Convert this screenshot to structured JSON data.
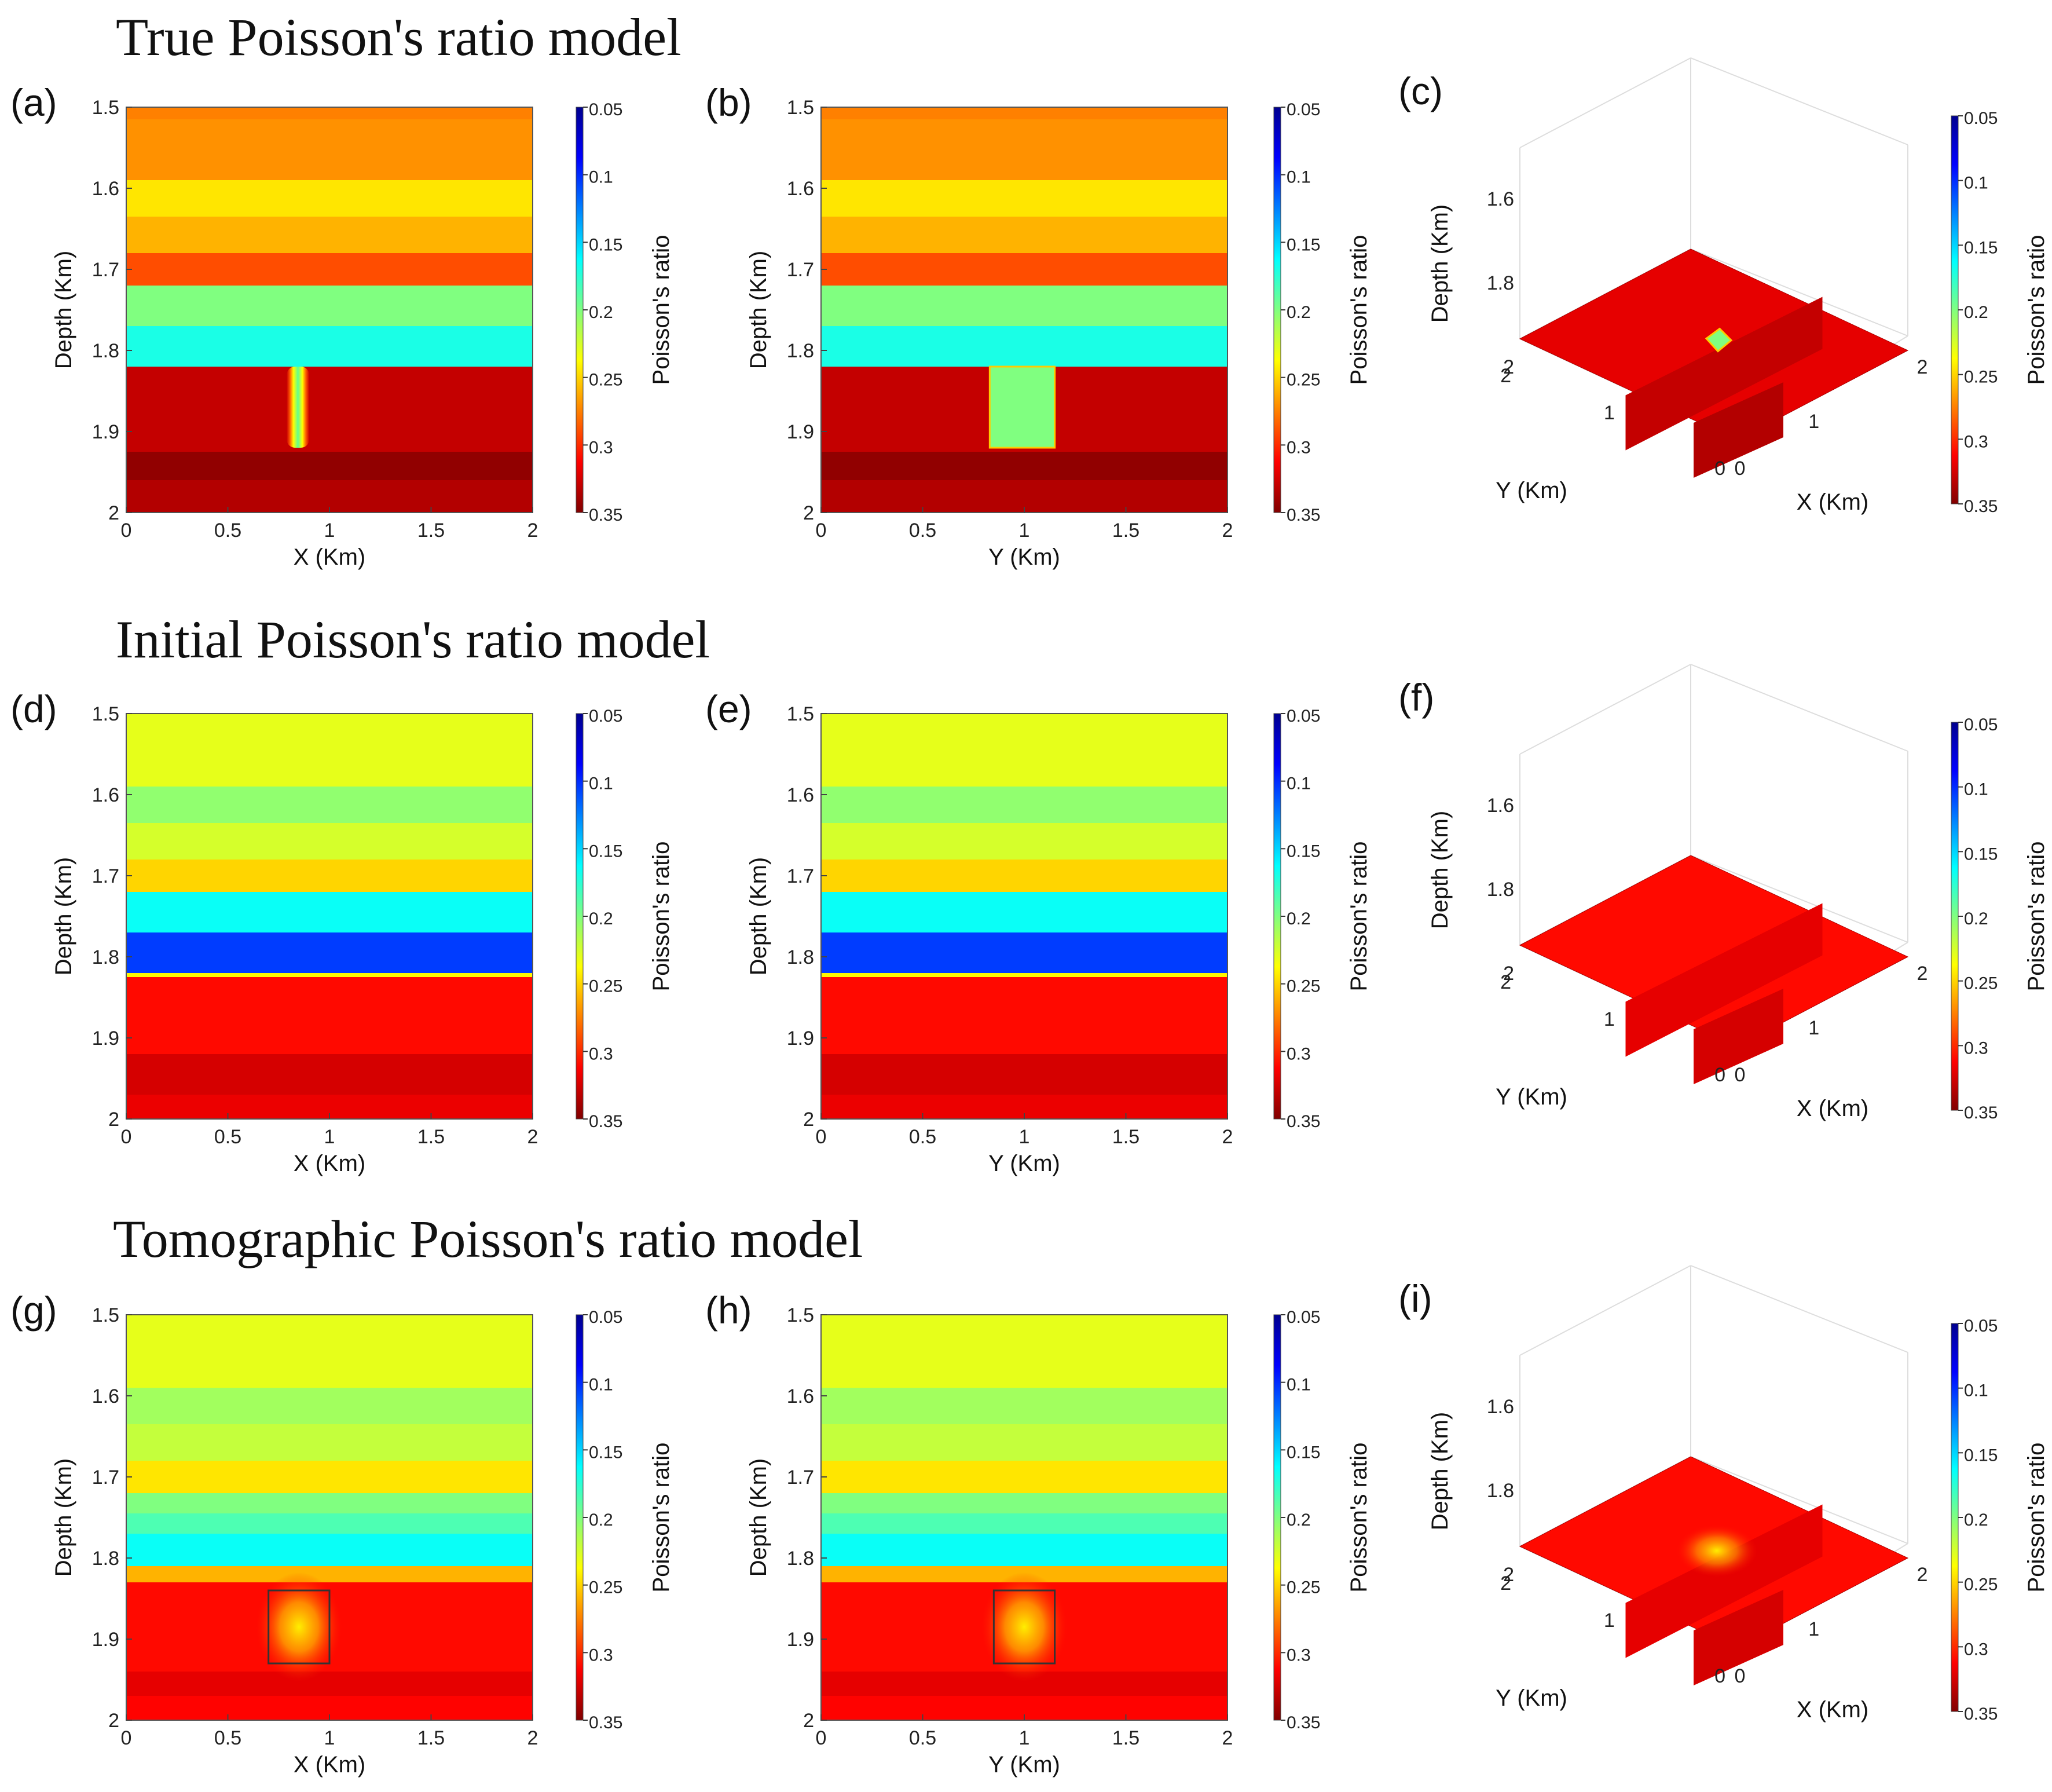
{
  "titles": [
    "True Poisson's ratio model",
    "Initial Poisson's ratio model",
    "Tomographic Poisson's ratio model"
  ],
  "colors": {
    "colormap": [
      "#00008f",
      "#0000ff",
      "#0080ff",
      "#00ffff",
      "#80ff80",
      "#ffff00",
      "#ff8000",
      "#ff0000",
      "#800000"
    ],
    "box_outline": "#333333",
    "grid_3d": "#dddddd"
  },
  "chart_data": [
    {
      "panel": "(a)",
      "type": "heatmap",
      "view": "xz-slice",
      "xlabel": "X (Km)",
      "ylabel": "Depth (Km)",
      "xlim": [
        0,
        2
      ],
      "ylim": [
        1.5,
        2
      ],
      "xticks": [
        "0",
        "0.5",
        "1",
        "1.5",
        "2"
      ],
      "yticks": [
        "1.5",
        "1.6",
        "1.7",
        "1.8",
        "1.9",
        "2"
      ],
      "layers": [
        {
          "top": 1.5,
          "bottom": 1.515,
          "value": 0.275
        },
        {
          "top": 1.515,
          "bottom": 1.59,
          "value": 0.27
        },
        {
          "top": 1.59,
          "bottom": 1.635,
          "value": 0.245
        },
        {
          "top": 1.635,
          "bottom": 1.68,
          "value": 0.26
        },
        {
          "top": 1.68,
          "bottom": 1.72,
          "value": 0.29
        },
        {
          "top": 1.72,
          "bottom": 1.77,
          "value": 0.2
        },
        {
          "top": 1.77,
          "bottom": 1.82,
          "value": 0.17
        },
        {
          "top": 1.82,
          "bottom": 1.925,
          "value": 0.33
        },
        {
          "top": 1.925,
          "bottom": 1.96,
          "value": 0.345
        },
        {
          "top": 1.96,
          "bottom": 2.0,
          "value": 0.335
        }
      ],
      "anomaly": {
        "min": 0.79,
        "max": 0.9,
        "top": 1.82,
        "bottom": 1.92,
        "value": 0.2,
        "style": "sharp"
      },
      "colorbar": {
        "label": "Poisson's ratio",
        "ticks": [
          "0.05",
          "0.1",
          "0.15",
          "0.2",
          "0.25",
          "0.3",
          "0.35"
        ],
        "range": [
          0.05,
          0.35
        ]
      }
    },
    {
      "panel": "(b)",
      "type": "heatmap",
      "view": "yz-slice",
      "xlabel": "Y (Km)",
      "ylabel": "Depth (Km)",
      "xlim": [
        0,
        2
      ],
      "ylim": [
        1.5,
        2
      ],
      "xticks": [
        "0",
        "0.5",
        "1",
        "1.5",
        "2"
      ],
      "yticks": [
        "1.5",
        "1.6",
        "1.7",
        "1.8",
        "1.9",
        "2"
      ],
      "layers": [
        {
          "top": 1.5,
          "bottom": 1.515,
          "value": 0.275
        },
        {
          "top": 1.515,
          "bottom": 1.59,
          "value": 0.27
        },
        {
          "top": 1.59,
          "bottom": 1.635,
          "value": 0.245
        },
        {
          "top": 1.635,
          "bottom": 1.68,
          "value": 0.26
        },
        {
          "top": 1.68,
          "bottom": 1.72,
          "value": 0.29
        },
        {
          "top": 1.72,
          "bottom": 1.77,
          "value": 0.2
        },
        {
          "top": 1.77,
          "bottom": 1.82,
          "value": 0.17
        },
        {
          "top": 1.82,
          "bottom": 1.925,
          "value": 0.33
        },
        {
          "top": 1.925,
          "bottom": 1.96,
          "value": 0.345
        },
        {
          "top": 1.96,
          "bottom": 2.0,
          "value": 0.335
        }
      ],
      "anomaly": {
        "min": 0.83,
        "max": 1.15,
        "top": 1.82,
        "bottom": 1.92,
        "value": 0.2,
        "style": "block"
      },
      "colorbar": {
        "label": "Poisson's ratio",
        "ticks": [
          "0.05",
          "0.1",
          "0.15",
          "0.2",
          "0.25",
          "0.3",
          "0.35"
        ],
        "range": [
          0.05,
          0.35
        ]
      }
    },
    {
      "panel": "(c)",
      "type": "surface3d",
      "xlabel": "X (Km)",
      "ylabel": "Y (Km)",
      "zlabel": "Depth (Km)",
      "xticks": [
        "0",
        "1",
        "2"
      ],
      "yticks": [
        "0",
        "1",
        "2"
      ],
      "zticks": [
        "1.6",
        "1.8",
        "2"
      ],
      "surface_value": 0.32,
      "anomaly": "small green patch at center (~0.2)",
      "colorbar": {
        "label": "Poisson's ratio",
        "ticks": [
          "0.05",
          "0.1",
          "0.15",
          "0.2",
          "0.25",
          "0.3",
          "0.35"
        ],
        "range": [
          0.05,
          0.35
        ]
      }
    },
    {
      "panel": "(d)",
      "type": "heatmap",
      "view": "xz-slice",
      "xlabel": "X (Km)",
      "ylabel": "Depth (Km)",
      "xlim": [
        0,
        2
      ],
      "ylim": [
        1.5,
        2
      ],
      "xticks": [
        "0",
        "0.5",
        "1",
        "1.5",
        "2"
      ],
      "yticks": [
        "1.5",
        "1.6",
        "1.7",
        "1.8",
        "1.9",
        "2"
      ],
      "layers": [
        {
          "top": 1.5,
          "bottom": 1.59,
          "value": 0.23
        },
        {
          "top": 1.59,
          "bottom": 1.635,
          "value": 0.205
        },
        {
          "top": 1.635,
          "bottom": 1.68,
          "value": 0.225
        },
        {
          "top": 1.68,
          "bottom": 1.72,
          "value": 0.25
        },
        {
          "top": 1.72,
          "bottom": 1.77,
          "value": 0.165
        },
        {
          "top": 1.77,
          "bottom": 1.82,
          "value": 0.105
        },
        {
          "top": 1.82,
          "bottom": 1.825,
          "value": 0.24
        },
        {
          "top": 1.825,
          "bottom": 1.92,
          "value": 0.31
        },
        {
          "top": 1.92,
          "bottom": 1.97,
          "value": 0.325
        },
        {
          "top": 1.97,
          "bottom": 2.0,
          "value": 0.318
        }
      ],
      "colorbar": {
        "label": "Poisson's ratio",
        "ticks": [
          "0.05",
          "0.1",
          "0.15",
          "0.2",
          "0.25",
          "0.3",
          "0.35"
        ],
        "range": [
          0.05,
          0.35
        ]
      }
    },
    {
      "panel": "(e)",
      "type": "heatmap",
      "view": "yz-slice",
      "xlabel": "Y (Km)",
      "ylabel": "Depth (Km)",
      "xlim": [
        0,
        2
      ],
      "ylim": [
        1.5,
        2
      ],
      "xticks": [
        "0",
        "0.5",
        "1",
        "1.5",
        "2"
      ],
      "yticks": [
        "1.5",
        "1.6",
        "1.7",
        "1.8",
        "1.9",
        "2"
      ],
      "layers": [
        {
          "top": 1.5,
          "bottom": 1.59,
          "value": 0.23
        },
        {
          "top": 1.59,
          "bottom": 1.635,
          "value": 0.205
        },
        {
          "top": 1.635,
          "bottom": 1.68,
          "value": 0.225
        },
        {
          "top": 1.68,
          "bottom": 1.72,
          "value": 0.25
        },
        {
          "top": 1.72,
          "bottom": 1.77,
          "value": 0.165
        },
        {
          "top": 1.77,
          "bottom": 1.82,
          "value": 0.105
        },
        {
          "top": 1.82,
          "bottom": 1.825,
          "value": 0.24
        },
        {
          "top": 1.825,
          "bottom": 1.92,
          "value": 0.31
        },
        {
          "top": 1.92,
          "bottom": 1.97,
          "value": 0.325
        },
        {
          "top": 1.97,
          "bottom": 2.0,
          "value": 0.318
        }
      ],
      "colorbar": {
        "label": "Poisson's ratio",
        "ticks": [
          "0.05",
          "0.1",
          "0.15",
          "0.2",
          "0.25",
          "0.3",
          "0.35"
        ],
        "range": [
          0.05,
          0.35
        ]
      }
    },
    {
      "panel": "(f)",
      "type": "surface3d",
      "xlabel": "X (Km)",
      "ylabel": "Y (Km)",
      "zlabel": "Depth (Km)",
      "xticks": [
        "0",
        "1",
        "2"
      ],
      "yticks": [
        "0",
        "1",
        "2"
      ],
      "zticks": [
        "1.6",
        "1.8",
        "2"
      ],
      "surface_value": 0.31,
      "colorbar": {
        "label": "Poisson's ratio",
        "ticks": [
          "0.05",
          "0.1",
          "0.15",
          "0.2",
          "0.25",
          "0.3",
          "0.35"
        ],
        "range": [
          0.05,
          0.35
        ]
      }
    },
    {
      "panel": "(g)",
      "type": "heatmap",
      "view": "xz-slice",
      "xlabel": "X (Km)",
      "ylabel": "Depth (Km)",
      "xlim": [
        0,
        2
      ],
      "ylim": [
        1.5,
        2
      ],
      "xticks": [
        "0",
        "0.5",
        "1",
        "1.5",
        "2"
      ],
      "yticks": [
        "1.5",
        "1.6",
        "1.7",
        "1.8",
        "1.9",
        "2"
      ],
      "layers": [
        {
          "top": 1.5,
          "bottom": 1.59,
          "value": 0.23
        },
        {
          "top": 1.59,
          "bottom": 1.635,
          "value": 0.21
        },
        {
          "top": 1.635,
          "bottom": 1.68,
          "value": 0.22
        },
        {
          "top": 1.68,
          "bottom": 1.72,
          "value": 0.245
        },
        {
          "top": 1.72,
          "bottom": 1.745,
          "value": 0.2
        },
        {
          "top": 1.745,
          "bottom": 1.77,
          "value": 0.185
        },
        {
          "top": 1.77,
          "bottom": 1.81,
          "value": 0.165
        },
        {
          "top": 1.81,
          "bottom": 1.83,
          "value": 0.26
        },
        {
          "top": 1.83,
          "bottom": 1.94,
          "value": 0.31
        },
        {
          "top": 1.94,
          "bottom": 1.97,
          "value": 0.32
        },
        {
          "top": 1.97,
          "bottom": 2.0,
          "value": 0.312
        }
      ],
      "anomaly": {
        "min": 0.7,
        "max": 1.0,
        "top": 1.84,
        "bottom": 1.93,
        "value": 0.26,
        "style": "blob"
      },
      "box": {
        "min": 0.7,
        "max": 1.0,
        "top": 1.84,
        "bottom": 1.93
      },
      "colorbar": {
        "label": "Poisson's ratio",
        "ticks": [
          "0.05",
          "0.1",
          "0.15",
          "0.2",
          "0.25",
          "0.3",
          "0.35"
        ],
        "range": [
          0.05,
          0.35
        ]
      }
    },
    {
      "panel": "(h)",
      "type": "heatmap",
      "view": "yz-slice",
      "xlabel": "Y (Km)",
      "ylabel": "Depth (Km)",
      "xlim": [
        0,
        2
      ],
      "ylim": [
        1.5,
        2
      ],
      "xticks": [
        "0",
        "0.5",
        "1",
        "1.5",
        "2"
      ],
      "yticks": [
        "1.5",
        "1.6",
        "1.7",
        "1.8",
        "1.9",
        "2"
      ],
      "layers": [
        {
          "top": 1.5,
          "bottom": 1.59,
          "value": 0.23
        },
        {
          "top": 1.59,
          "bottom": 1.635,
          "value": 0.21
        },
        {
          "top": 1.635,
          "bottom": 1.68,
          "value": 0.22
        },
        {
          "top": 1.68,
          "bottom": 1.72,
          "value": 0.245
        },
        {
          "top": 1.72,
          "bottom": 1.745,
          "value": 0.2
        },
        {
          "top": 1.745,
          "bottom": 1.77,
          "value": 0.185
        },
        {
          "top": 1.77,
          "bottom": 1.81,
          "value": 0.165
        },
        {
          "top": 1.81,
          "bottom": 1.83,
          "value": 0.26
        },
        {
          "top": 1.83,
          "bottom": 1.94,
          "value": 0.31
        },
        {
          "top": 1.94,
          "bottom": 1.97,
          "value": 0.32
        },
        {
          "top": 1.97,
          "bottom": 2.0,
          "value": 0.312
        }
      ],
      "anomaly": {
        "min": 0.85,
        "max": 1.15,
        "top": 1.84,
        "bottom": 1.93,
        "value": 0.26,
        "style": "blob"
      },
      "box": {
        "min": 0.85,
        "max": 1.15,
        "top": 1.84,
        "bottom": 1.93
      },
      "colorbar": {
        "label": "Poisson's ratio",
        "ticks": [
          "0.05",
          "0.1",
          "0.15",
          "0.2",
          "0.25",
          "0.3",
          "0.35"
        ],
        "range": [
          0.05,
          0.35
        ]
      }
    },
    {
      "panel": "(i)",
      "type": "surface3d",
      "xlabel": "X (Km)",
      "ylabel": "Y (Km)",
      "zlabel": "Depth (Km)",
      "xticks": [
        "0",
        "1",
        "2"
      ],
      "yticks": [
        "0",
        "1",
        "2"
      ],
      "zticks": [
        "1.6",
        "1.8",
        "2"
      ],
      "surface_value": 0.31,
      "anomaly": "yellow glow at center (~0.26)",
      "colorbar": {
        "label": "Poisson's ratio",
        "ticks": [
          "0.05",
          "0.1",
          "0.15",
          "0.2",
          "0.25",
          "0.3",
          "0.35"
        ],
        "range": [
          0.05,
          0.35
        ]
      }
    }
  ]
}
